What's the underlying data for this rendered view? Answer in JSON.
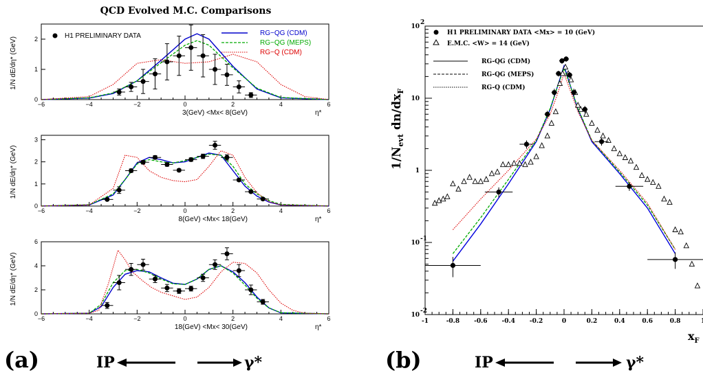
{
  "figure": {
    "title": "QCD Evolved M.C. Comparisons",
    "label_a": "(a)",
    "label_b": "(b)",
    "pomeron_symbol": "IP",
    "photon_symbol": "γ*"
  },
  "left_legend": {
    "data": "H1 PRELIMINARY DATA",
    "s1": "RG−QG (CDM)",
    "s2": "RG−QG (MEPS)",
    "s3": "RG−Q (CDM)"
  },
  "right_legend": {
    "data": "H1 PRELIMINARY DATA <Mx> = 10 (GeV)",
    "emc": "E.M.C. <W> = 14 (GeV)",
    "s1": "RG-QG (CDM)",
    "s2": "RG-QG (MEPS)",
    "s3": "RG-Q (CDM)"
  },
  "colors": {
    "cdm": "#0000cc",
    "meps": "#00aa00",
    "rgq": "#dd0000",
    "r_cdm": "#0000dd"
  },
  "chart_data": [
    {
      "type": "line",
      "ylabel": "1/N dE/dη* (GeV)",
      "xlabel": "η*",
      "bin_label": "3(GeV) <Mx< 8(GeV)",
      "xlim": [
        -6,
        6
      ],
      "ylim": [
        0,
        2.5
      ],
      "xticks": [
        -6,
        -4,
        -2,
        0,
        2,
        4,
        6
      ],
      "yticks": [
        0,
        1,
        2
      ],
      "data": [
        [
          -2.75,
          0.25,
          0.1
        ],
        [
          -2.25,
          0.42,
          0.15
        ],
        [
          -1.75,
          0.6,
          0.4
        ],
        [
          -1.25,
          0.85,
          0.5
        ],
        [
          -0.75,
          1.25,
          0.6
        ],
        [
          -0.25,
          1.45,
          0.65
        ],
        [
          0.25,
          1.72,
          0.75
        ],
        [
          0.75,
          1.45,
          0.7
        ],
        [
          1.25,
          1.0,
          0.5
        ],
        [
          1.75,
          0.82,
          0.35
        ],
        [
          2.25,
          0.42,
          0.2
        ],
        [
          2.75,
          0.15,
          0.08
        ]
      ],
      "series": [
        {
          "name": "RG−QG (CDM)",
          "x": [
            -6,
            -4,
            -3,
            -2,
            -1,
            0,
            0.5,
            1,
            2,
            3,
            4,
            6
          ],
          "y": [
            0,
            0.05,
            0.2,
            0.62,
            1.3,
            2.0,
            2.18,
            2.0,
            1.1,
            0.35,
            0.06,
            0
          ]
        },
        {
          "name": "RG−QG (MEPS)",
          "x": [
            -6,
            -4,
            -3,
            -2,
            -1,
            0,
            0.5,
            1,
            2,
            3,
            4,
            6
          ],
          "y": [
            0,
            0.06,
            0.22,
            0.62,
            1.22,
            1.8,
            1.95,
            1.8,
            1.05,
            0.38,
            0.07,
            0
          ]
        },
        {
          "name": "RG−Q (CDM)",
          "x": [
            -6,
            -4,
            -3,
            -2,
            -1,
            0,
            1,
            2,
            3,
            4,
            5,
            6
          ],
          "y": [
            0,
            0.1,
            0.5,
            1.2,
            1.32,
            1.2,
            1.25,
            1.5,
            1.25,
            0.5,
            0.1,
            0
          ]
        }
      ]
    },
    {
      "type": "line",
      "ylabel": "1/N dE/dη* (GeV)",
      "xlabel": "η*",
      "bin_label": "8(GeV) <Mx< 18(GeV)",
      "xlim": [
        -6,
        6
      ],
      "ylim": [
        0,
        3.2
      ],
      "xticks": [
        -6,
        -4,
        -2,
        0,
        2,
        4,
        6
      ],
      "yticks": [
        0,
        1,
        2,
        3
      ],
      "data": [
        [
          -3.25,
          0.3,
          0.05
        ],
        [
          -2.75,
          0.72,
          0.15
        ],
        [
          -2.25,
          1.6,
          0.08
        ],
        [
          -1.75,
          1.98,
          0.08
        ],
        [
          -1.25,
          2.2,
          0.08
        ],
        [
          -0.75,
          1.88,
          0.08
        ],
        [
          -0.25,
          1.62,
          0.06
        ],
        [
          0.25,
          2.1,
          0.08
        ],
        [
          0.75,
          2.25,
          0.1
        ],
        [
          1.25,
          2.75,
          0.18
        ],
        [
          1.75,
          2.2,
          0.12
        ],
        [
          2.25,
          1.18,
          0.06
        ],
        [
          2.75,
          0.65,
          0.06
        ],
        [
          3.25,
          0.32,
          0.05
        ]
      ],
      "series": [
        {
          "name": "RG−QG (CDM)",
          "x": [
            -6,
            -4,
            -3,
            -2.5,
            -2,
            -1.5,
            -1,
            -0.5,
            0,
            0.5,
            1,
            1.5,
            2,
            2.5,
            3,
            3.5,
            4,
            6
          ],
          "y": [
            0,
            0.05,
            0.5,
            1.2,
            1.95,
            2.2,
            2.1,
            1.95,
            2.0,
            2.2,
            2.4,
            2.3,
            1.6,
            0.9,
            0.45,
            0.18,
            0.05,
            0
          ]
        },
        {
          "name": "RG−QG (MEPS)",
          "x": [
            -6,
            -4,
            -3,
            -2.5,
            -2,
            -1.5,
            -1,
            -0.5,
            0,
            0.5,
            1,
            1.5,
            2,
            2.5,
            3,
            3.5,
            4,
            6
          ],
          "y": [
            0,
            0.06,
            0.55,
            1.2,
            1.9,
            2.1,
            2.0,
            1.95,
            2.05,
            2.2,
            2.35,
            2.3,
            1.8,
            1.0,
            0.55,
            0.25,
            0.07,
            0
          ]
        },
        {
          "name": "RG−Q (CDM)",
          "x": [
            -6,
            -4,
            -3,
            -2.5,
            -2,
            -1.5,
            -1,
            -0.5,
            0,
            0.5,
            1,
            1.5,
            2,
            2.5,
            3,
            3.5,
            4,
            6
          ],
          "y": [
            0,
            0.05,
            0.8,
            2.3,
            2.2,
            1.6,
            1.3,
            1.15,
            1.1,
            1.2,
            1.8,
            2.5,
            2.3,
            1.3,
            0.6,
            0.2,
            0.05,
            0
          ]
        }
      ]
    },
    {
      "type": "line",
      "ylabel": "1/N dE/dη* (GeV)",
      "xlabel": "η*",
      "bin_label": "18(GeV) <Mx< 30(GeV)",
      "xlim": [
        -6,
        6
      ],
      "ylim": [
        0,
        6
      ],
      "xticks": [
        -6,
        -4,
        -2,
        0,
        2,
        4,
        6
      ],
      "yticks": [
        0,
        2,
        4,
        6
      ],
      "data": [
        [
          -3.25,
          0.7,
          0.25
        ],
        [
          -2.75,
          2.6,
          0.6
        ],
        [
          -2.25,
          3.7,
          0.5
        ],
        [
          -1.75,
          4.1,
          0.45
        ],
        [
          -1.25,
          2.9,
          0.3
        ],
        [
          -0.75,
          2.15,
          0.3
        ],
        [
          -0.25,
          1.9,
          0.2
        ],
        [
          0.25,
          2.1,
          0.2
        ],
        [
          0.75,
          3.0,
          0.3
        ],
        [
          1.25,
          4.1,
          0.4
        ],
        [
          1.75,
          5.0,
          0.5
        ],
        [
          2.25,
          3.6,
          0.5
        ],
        [
          2.75,
          2.0,
          0.4
        ],
        [
          3.25,
          1.0,
          0.2
        ]
      ],
      "series": [
        {
          "name": "RG−QG (CDM)",
          "x": [
            -6,
            -4,
            -3.5,
            -3,
            -2.5,
            -2,
            -1.5,
            -1,
            -0.5,
            0,
            0.5,
            1,
            1.5,
            2,
            2.5,
            3,
            3.5,
            4,
            6
          ],
          "y": [
            0,
            0.05,
            0.6,
            2.2,
            3.3,
            3.6,
            3.5,
            3.0,
            2.55,
            2.45,
            2.9,
            3.7,
            4.0,
            3.5,
            2.6,
            1.4,
            0.5,
            0.08,
            0
          ]
        },
        {
          "name": "RG−QG (MEPS)",
          "x": [
            -6,
            -4,
            -3.5,
            -3,
            -2.5,
            -2,
            -1.5,
            -1,
            -0.5,
            0,
            0.5,
            1,
            1.5,
            2,
            2.5,
            3,
            3.5,
            4,
            6
          ],
          "y": [
            0,
            0.05,
            0.8,
            2.6,
            3.6,
            3.7,
            3.4,
            2.9,
            2.5,
            2.45,
            2.9,
            3.7,
            4.0,
            3.4,
            2.4,
            1.3,
            0.5,
            0.1,
            0
          ]
        },
        {
          "name": "RG−Q (CDM)",
          "x": [
            -6,
            -4,
            -3.6,
            -3.2,
            -2.8,
            -2.5,
            -2.2,
            -1.8,
            -1.4,
            -1,
            -0.5,
            0,
            0.5,
            1,
            1.5,
            2,
            2.5,
            3,
            3.5,
            4,
            4.5,
            5,
            6
          ],
          "y": [
            0,
            0.05,
            0.3,
            2.5,
            5.3,
            4.5,
            3.5,
            2.8,
            2.2,
            1.8,
            1.5,
            1.2,
            1.4,
            2.2,
            3.5,
            4.3,
            4.2,
            3.4,
            2.0,
            0.9,
            0.3,
            0.05,
            0
          ]
        }
      ]
    },
    {
      "type": "scatter",
      "ylabel": "1/N_evt dn/dx_F",
      "xlabel": "x_F",
      "xlim": [
        -1,
        1
      ],
      "ylim": [
        0.01,
        100
      ],
      "yscale": "log",
      "xticks": [
        -1,
        -0.8,
        -0.6,
        -0.4,
        -0.2,
        0,
        0.2,
        0.4,
        0.6,
        0.8,
        1
      ],
      "yticks_labels": [
        "10^-2",
        "10^-1",
        "1",
        "10",
        "10^2"
      ],
      "h1_data": [
        [
          -0.8,
          0.048,
          0.015
        ],
        [
          -0.47,
          0.5,
          0.08
        ],
        [
          -0.27,
          2.3,
          0.3
        ],
        [
          -0.12,
          6.0,
          0.7
        ],
        [
          -0.07,
          12,
          1.5
        ],
        [
          -0.04,
          22,
          2
        ],
        [
          -0.015,
          33,
          3
        ],
        [
          0.015,
          35,
          3
        ],
        [
          0.04,
          21,
          2
        ],
        [
          0.07,
          12,
          1.5
        ],
        [
          0.15,
          7.0,
          0.8
        ],
        [
          0.27,
          2.5,
          0.3
        ],
        [
          0.47,
          0.6,
          0.08
        ],
        [
          0.8,
          0.058,
          0.015
        ]
      ],
      "emc_data": [
        [
          -0.93,
          0.35
        ],
        [
          -0.9,
          0.38
        ],
        [
          -0.87,
          0.4
        ],
        [
          -0.84,
          0.43
        ],
        [
          -0.8,
          0.65
        ],
        [
          -0.76,
          0.55
        ],
        [
          -0.72,
          0.7
        ],
        [
          -0.68,
          0.8
        ],
        [
          -0.64,
          0.7
        ],
        [
          -0.6,
          0.7
        ],
        [
          -0.56,
          0.75
        ],
        [
          -0.52,
          0.9
        ],
        [
          -0.48,
          0.95
        ],
        [
          -0.44,
          1.2
        ],
        [
          -0.4,
          1.2
        ],
        [
          -0.36,
          1.25
        ],
        [
          -0.32,
          1.25
        ],
        [
          -0.28,
          1.2
        ],
        [
          -0.24,
          1.3
        ],
        [
          -0.2,
          1.55
        ],
        [
          -0.16,
          2.2
        ],
        [
          -0.12,
          3.0
        ],
        [
          -0.09,
          4.5
        ],
        [
          -0.06,
          6.5
        ],
        [
          -0.03,
          16
        ],
        [
          -0.01,
          22
        ],
        [
          0.01,
          27
        ],
        [
          0.03,
          22
        ],
        [
          0.05,
          18
        ],
        [
          0.08,
          12
        ],
        [
          0.1,
          8
        ],
        [
          0.12,
          7
        ],
        [
          0.16,
          6
        ],
        [
          0.2,
          4.5
        ],
        [
          0.24,
          3.6
        ],
        [
          0.28,
          3.0
        ],
        [
          0.32,
          2.6
        ],
        [
          0.36,
          2.0
        ],
        [
          0.4,
          1.7
        ],
        [
          0.44,
          1.5
        ],
        [
          0.48,
          1.35
        ],
        [
          0.52,
          1.1
        ],
        [
          0.56,
          0.85
        ],
        [
          0.6,
          0.75
        ],
        [
          0.64,
          0.68
        ],
        [
          0.68,
          0.6
        ],
        [
          0.72,
          0.4
        ],
        [
          0.76,
          0.36
        ],
        [
          0.8,
          0.15
        ],
        [
          0.84,
          0.14
        ],
        [
          0.88,
          0.09
        ],
        [
          0.92,
          0.05
        ],
        [
          0.96,
          0.025
        ]
      ],
      "series": [
        {
          "name": "RG-QG (CDM)",
          "x": [
            -0.8,
            -0.6,
            -0.4,
            -0.2,
            -0.1,
            -0.05,
            0,
            0.05,
            0.1,
            0.2,
            0.4,
            0.6,
            0.8
          ],
          "y": [
            0.055,
            0.18,
            0.65,
            2.5,
            7,
            14,
            28,
            14,
            7,
            2.5,
            0.9,
            0.3,
            0.07
          ]
        },
        {
          "name": "RG-QG (MEPS)",
          "x": [
            -0.8,
            -0.6,
            -0.4,
            -0.2,
            -0.1,
            -0.05,
            0,
            0.05,
            0.1,
            0.2,
            0.4,
            0.6,
            0.8
          ],
          "y": [
            0.07,
            0.22,
            0.75,
            2.6,
            7.2,
            14,
            26,
            14,
            7.2,
            2.6,
            0.95,
            0.33,
            0.08
          ]
        },
        {
          "name": "RG-Q (CDM)",
          "x": [
            -0.8,
            -0.6,
            -0.4,
            -0.2,
            -0.1,
            -0.05,
            0,
            0.05,
            0.1,
            0.2,
            0.4,
            0.6,
            0.8
          ],
          "y": [
            0.15,
            0.4,
            1.0,
            2.7,
            6,
            11,
            22,
            12,
            6.5,
            2.6,
            1.0,
            0.35,
            0.08
          ]
        }
      ]
    }
  ]
}
